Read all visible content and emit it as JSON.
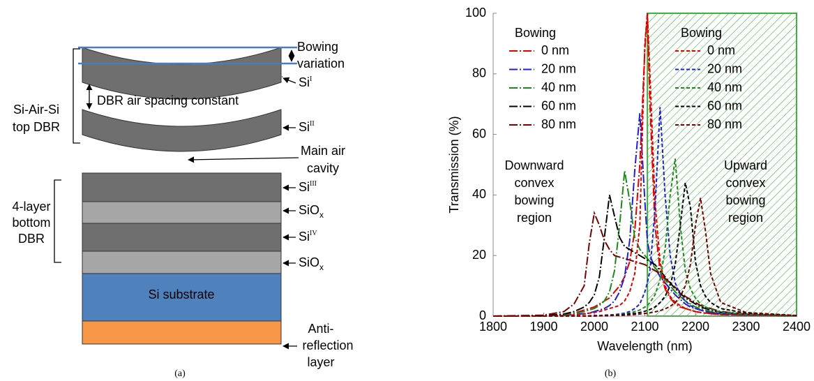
{
  "diagram": {
    "bowing_variation": [
      "Bowing",
      "variation"
    ],
    "top_dbr": [
      "Si-Air-Si",
      "top DBR"
    ],
    "air_spacing": "DBR air spacing constant",
    "main_cavity": [
      "Main air",
      "cavity"
    ],
    "bottom_dbr": [
      "4-layer",
      "bottom",
      "DBR"
    ],
    "substrate": "Si substrate",
    "anti_reflection": [
      "Anti-",
      "reflection",
      "layer"
    ],
    "layers": [
      {
        "base": "Si",
        "sup": "I"
      },
      {
        "base": "Si",
        "sup": "II"
      },
      {
        "base": "Si",
        "sup": "III"
      },
      {
        "base": "SiO",
        "sub": "x"
      },
      {
        "base": "Si",
        "sup": "IV"
      },
      {
        "base": "SiO",
        "sub": "x"
      }
    ],
    "caption": "(a)"
  },
  "chart_data": {
    "type": "line",
    "caption": "(b)",
    "xlabel": "Wavelength (nm)",
    "ylabel": "Transmission (%)",
    "xlim": [
      1800,
      2400
    ],
    "ylim": [
      0,
      100
    ],
    "xticks": [
      1800,
      1900,
      2000,
      2100,
      2200,
      2300,
      2400
    ],
    "yticks": [
      0,
      20,
      40,
      60,
      80,
      100
    ],
    "grid": false,
    "shaded_span": [
      2105,
      2400
    ],
    "shaded_color": "#3cb43c",
    "legend_titles": [
      "Bowing",
      "Bowing"
    ],
    "annotations": [
      [
        "Downward",
        "convex",
        "bowing",
        "region"
      ],
      [
        "Upward",
        "convex",
        "bowing",
        "region"
      ]
    ],
    "x": [
      1800,
      1900,
      1940,
      1960,
      1980,
      1990,
      2000,
      2010,
      2020,
      2030,
      2040,
      2050,
      2060,
      2070,
      2080,
      2090,
      2100,
      2105,
      2110,
      2120,
      2130,
      2140,
      2150,
      2160,
      2170,
      2180,
      2190,
      2200,
      2210,
      2220,
      2230,
      2250,
      2300,
      2400
    ],
    "series": [
      {
        "name": "0 nm",
        "color": "#e00000",
        "style": "dash-dot",
        "values": [
          0,
          0,
          0.5,
          1,
          2,
          2.5,
          3,
          4,
          5,
          6,
          8,
          10,
          13,
          18,
          28,
          50,
          88,
          100,
          70,
          30,
          15,
          9,
          6,
          4,
          3,
          2.5,
          2,
          1.5,
          1.2,
          1,
          0.8,
          0.5,
          0.3,
          0.1
        ]
      },
      {
        "name": "20 nm",
        "color": "#1f1fcc",
        "style": "dash-dot",
        "values": [
          0,
          0.1,
          0.3,
          0.5,
          0.8,
          1,
          1.5,
          2,
          2.5,
          3.5,
          5,
          8,
          13,
          25,
          48,
          67,
          38,
          25,
          20,
          16,
          13,
          11,
          9,
          7,
          5.5,
          4,
          3,
          2.5,
          2,
          1.5,
          1.2,
          0.8,
          0.4,
          0.1
        ]
      },
      {
        "name": "40 nm",
        "color": "#1a8a1a",
        "style": "dash-dot",
        "values": [
          0,
          0.1,
          0.4,
          0.8,
          1.5,
          2,
          2.5,
          3.5,
          5,
          8,
          15,
          30,
          48,
          38,
          26,
          22,
          20,
          19,
          18,
          16,
          14,
          12,
          10,
          8,
          6.5,
          5,
          4,
          3,
          2.5,
          2,
          1.5,
          1,
          0.5,
          0.1
        ]
      },
      {
        "name": "60 nm",
        "color": "#000000",
        "style": "dash-dot",
        "values": [
          0,
          0.2,
          0.7,
          1.5,
          3,
          4.5,
          7,
          13,
          26,
          40,
          33,
          26,
          23,
          22,
          21,
          20,
          19,
          18.5,
          18,
          17,
          15,
          13,
          11,
          9,
          7.5,
          6,
          5,
          4,
          3,
          2.5,
          2,
          1.3,
          0.6,
          0.1
        ]
      },
      {
        "name": "80 nm",
        "color": "#7a0000",
        "style": "dash-dot",
        "values": [
          0,
          0.3,
          1.5,
          4,
          10,
          24,
          34,
          30,
          25,
          22,
          20,
          19.5,
          19,
          18.5,
          18,
          17.5,
          17,
          16.5,
          16,
          15,
          14,
          12.5,
          11,
          9.5,
          8,
          6.5,
          5.5,
          4.5,
          3.5,
          3,
          2.5,
          1.5,
          0.7,
          0.1
        ]
      },
      {
        "name": "0 nm",
        "color": "#e00000",
        "style": "dashed",
        "values": [
          0,
          0,
          0.2,
          0.4,
          0.7,
          1,
          1.2,
          1.5,
          2,
          2.5,
          3,
          3.5,
          5,
          8,
          14,
          30,
          90,
          100,
          80,
          38,
          18,
          10,
          6.5,
          4.5,
          3.5,
          2.5,
          2,
          1.5,
          1.2,
          1,
          0.8,
          0.5,
          0.3,
          0.1
        ]
      },
      {
        "name": "20 nm",
        "color": "#1f1fcc",
        "style": "dashed",
        "values": [
          0,
          0,
          0,
          0,
          0.1,
          0.1,
          0.2,
          0.2,
          0.3,
          0.4,
          0.5,
          0.7,
          1,
          1.5,
          2.5,
          4,
          8,
          11,
          15,
          35,
          69,
          40,
          20,
          11,
          7,
          5,
          3.5,
          2.5,
          2,
          1.5,
          1.2,
          0.8,
          0.4,
          0.1
        ]
      },
      {
        "name": "40 nm",
        "color": "#1a8a1a",
        "style": "dashed",
        "values": [
          0,
          0,
          0,
          0,
          0.1,
          0.1,
          0.1,
          0.2,
          0.2,
          0.3,
          0.4,
          0.5,
          0.7,
          1,
          1.5,
          2,
          3,
          3.5,
          4.5,
          7,
          12,
          22,
          40,
          52,
          30,
          15,
          9,
          6,
          4,
          3,
          2.3,
          1.3,
          0.6,
          0.1
        ]
      },
      {
        "name": "60 nm",
        "color": "#000000",
        "style": "dashed",
        "values": [
          0,
          0,
          0,
          0,
          0,
          0.1,
          0.1,
          0.1,
          0.2,
          0.2,
          0.3,
          0.4,
          0.5,
          0.7,
          0.9,
          1.2,
          1.6,
          1.9,
          2.2,
          3,
          4.5,
          6.5,
          10,
          17,
          30,
          44,
          36,
          18,
          10,
          6.5,
          4.5,
          2.5,
          1,
          0.2
        ]
      },
      {
        "name": "80 nm",
        "color": "#7a0000",
        "style": "dashed",
        "values": [
          0,
          0,
          0,
          0,
          0,
          0,
          0,
          0.1,
          0.1,
          0.1,
          0.2,
          0.2,
          0.3,
          0.4,
          0.5,
          0.7,
          0.9,
          1,
          1.1,
          1.4,
          1.8,
          2.4,
          3.2,
          4.5,
          6.5,
          10,
          17,
          30,
          39,
          28,
          14,
          4.5,
          1.2,
          0.2
        ]
      }
    ]
  }
}
